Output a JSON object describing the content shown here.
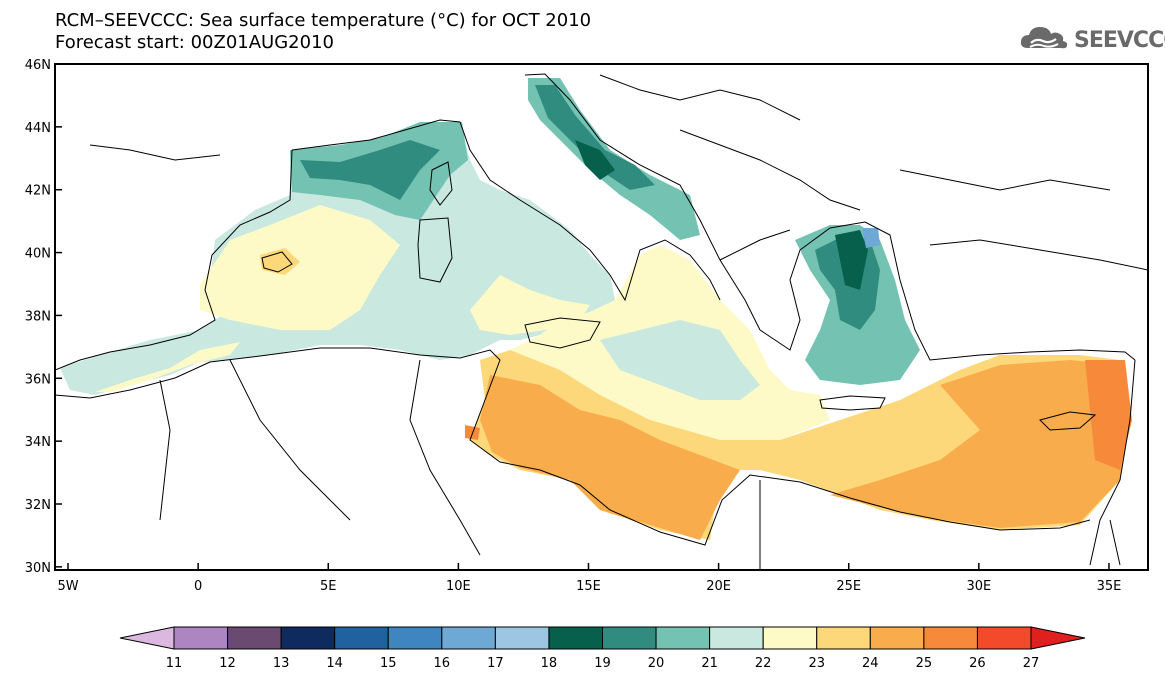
{
  "title": {
    "line1": "RCM–SEEVCCC: Sea surface temperature (°C) for OCT 2010",
    "line2": "Forecast start: 00Z01AUG2010"
  },
  "logo": {
    "text": "SEEVCCC",
    "icon": "cloud-icon",
    "color": "#6a6a6a"
  },
  "map": {
    "lat_labels": [
      "46N",
      "44N",
      "42N",
      "40N",
      "38N",
      "36N",
      "34N",
      "32N",
      "30N"
    ],
    "lat_values": [
      46,
      44,
      42,
      40,
      38,
      36,
      34,
      32,
      30
    ],
    "lon_labels": [
      "5W",
      "0",
      "5E",
      "10E",
      "15E",
      "20E",
      "25E",
      "30E",
      "35E"
    ],
    "lon_values": [
      -5,
      0,
      5,
      10,
      15,
      20,
      25,
      30,
      35
    ],
    "lon_range": [
      -5.5,
      36.5
    ],
    "lat_range": [
      29.9,
      46
    ]
  },
  "colorbar": {
    "labels": [
      "11",
      "12",
      "13",
      "14",
      "15",
      "16",
      "17",
      "18",
      "19",
      "20",
      "21",
      "22",
      "23",
      "24",
      "25",
      "26",
      "27"
    ],
    "colors": [
      "#dcb8e0",
      "#ad85c0",
      "#6b4a72",
      "#0f2a5e",
      "#2062a0",
      "#3f86c0",
      "#6ea8d4",
      "#9cc6e2",
      "#06604c",
      "#2f8c7e",
      "#74c2b2",
      "#c8e8e0",
      "#fdfac8",
      "#fdd87a",
      "#f9ac4c",
      "#f78a3a",
      "#f24a2a",
      "#e0201e"
    ]
  },
  "sst_regions": {
    "west_med": 22,
    "gulf_of_lion": 20,
    "adriatic_north": 19,
    "aegean_north": 19,
    "libyan_coast": 25,
    "levantine": 25,
    "levantine_east_coast": 26
  }
}
